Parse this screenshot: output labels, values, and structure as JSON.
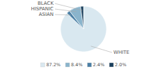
{
  "chart_data": {
    "type": "pie",
    "categories": [
      "WHITE",
      "ASIAN",
      "HISPANIC",
      "BLACK"
    ],
    "values": [
      87.2,
      2.4,
      8.4,
      2.0
    ],
    "value_labels": [
      "87.2%",
      "2.4%",
      "8.4%",
      "2.0%"
    ],
    "colors": [
      "#d9e8f0",
      "#4a7fa5",
      "#8ab4cc",
      "#1a3f5c"
    ],
    "legend": "bottom"
  }
}
